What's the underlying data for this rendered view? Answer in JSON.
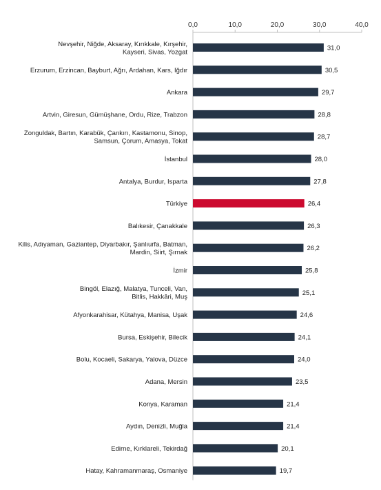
{
  "chart_data": {
    "type": "bar",
    "orientation": "horizontal",
    "categories": [
      [
        "Nevşehir, Niğde, Aksaray, Kırıkkale, Kırşehir,",
        "Kayseri, Sivas, Yozgat"
      ],
      [
        "Erzurum, Erzincan, Bayburt, Ağrı, Ardahan, Kars, Iğdır"
      ],
      [
        "Ankara"
      ],
      [
        "Artvin, Giresun, Gümüşhane, Ordu, Rize, Trabzon"
      ],
      [
        "Zonguldak, Bartın, Karabük, Çankırı, Kastamonu, Sinop,",
        "Samsun, Çorum, Amasya, Tokat"
      ],
      [
        "İstanbul"
      ],
      [
        "Antalya, Burdur, Isparta"
      ],
      [
        "Türkiye"
      ],
      [
        "Balıkesir, Çanakkale"
      ],
      [
        "Kilis, Adıyaman, Gaziantep, Diyarbakır, Şanlıurfa, Batman,",
        "Mardin, Siirt, Şırnak"
      ],
      [
        "İzmir"
      ],
      [
        "Bingöl, Elazığ, Malatya, Tunceli, Van,",
        "Bitlis, Hakkâri, Muş"
      ],
      [
        "Afyonkarahisar, Kütahya, Manisa, Uşak"
      ],
      [
        "Bursa, Eskişehir, Bilecik"
      ],
      [
        "Bolu, Kocaeli, Sakarya, Yalova, Düzce"
      ],
      [
        "Adana, Mersin"
      ],
      [
        "Konya, Karaman"
      ],
      [
        "Aydın, Denizli, Muğla"
      ],
      [
        "Edirne, Kırklareli, Tekirdağ"
      ],
      [
        "Hatay, Kahramanmaraş, Osmaniye"
      ]
    ],
    "values": [
      31.0,
      30.5,
      29.7,
      28.8,
      28.7,
      28.0,
      27.8,
      26.4,
      26.3,
      26.2,
      25.8,
      25.1,
      24.6,
      24.1,
      24.0,
      23.5,
      21.4,
      21.4,
      20.1,
      19.7
    ],
    "value_labels": [
      "31,0",
      "30,5",
      "29,7",
      "28,8",
      "28,7",
      "28,0",
      "27,8",
      "26,4",
      "26,3",
      "26,2",
      "25,8",
      "25,1",
      "24,6",
      "24,1",
      "24,0",
      "23,5",
      "21,4",
      "21,4",
      "20,1",
      "19,7"
    ],
    "xlim": [
      0,
      40
    ],
    "xticks": [
      0,
      10,
      20,
      30,
      40
    ],
    "xtick_labels": [
      "0,0",
      "10,0",
      "20,0",
      "30,0",
      "40,0"
    ],
    "axis_position": "top",
    "grid": false,
    "title": "",
    "xlabel": "",
    "ylabel": "",
    "colors": {
      "bar": "#263547",
      "highlight": "#cc0a2f",
      "highlight_category": "Türkiye",
      "axis": "#bfbfbf"
    }
  }
}
